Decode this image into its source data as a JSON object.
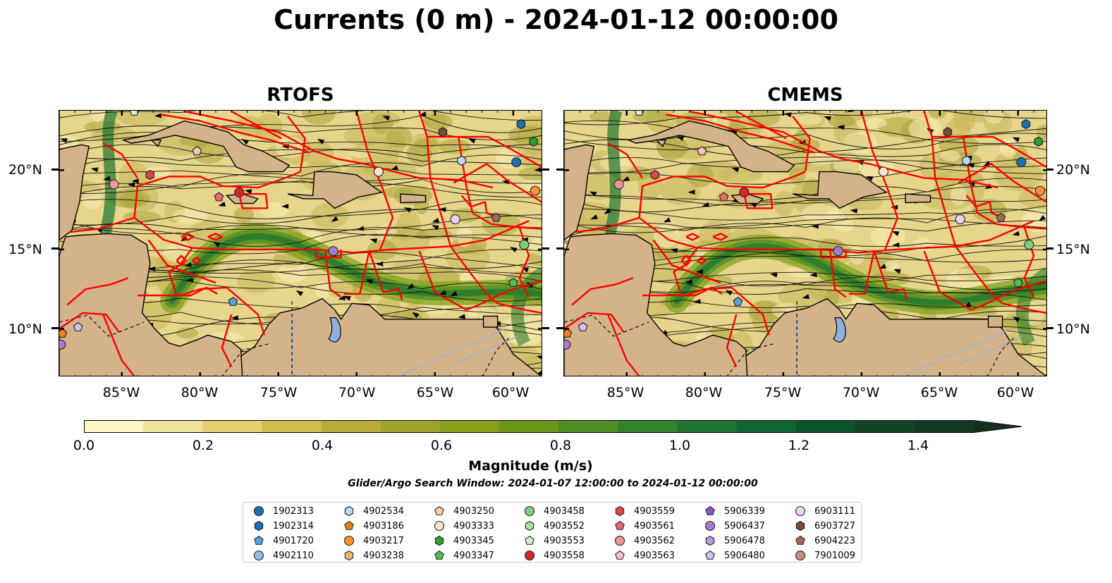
{
  "title": "Currents (0 m) - 2024-01-12 00:00:00",
  "panels": [
    {
      "name": "RTOFS"
    },
    {
      "name": "CMEMS"
    }
  ],
  "lat_labels": [
    "20°N",
    "15°N",
    "10°N"
  ],
  "lon_labels": [
    "85°W",
    "80°W",
    "75°W",
    "70°W",
    "65°W",
    "60°W"
  ],
  "colorbar": {
    "label": "Magnitude (m/s)",
    "ticks": [
      "0.0",
      "0.2",
      "0.4",
      "0.6",
      "0.8",
      "1.0",
      "1.2",
      "1.4"
    ],
    "colors": [
      "#fdf6c3",
      "#f0e39a",
      "#e2cf74",
      "#d2bd52",
      "#b9ac3c",
      "#9ea52a",
      "#84a01d",
      "#6a961a",
      "#4f8c22",
      "#34822a",
      "#1d7530",
      "#0f6630",
      "#0c552a",
      "#0f4526",
      "#123822",
      "#13301c"
    ]
  },
  "search_window_text": "Glider/Argo Search Window: 2024-01-07 12:00:00 to 2024-01-12 00:00:00",
  "legend": [
    {
      "id": "1902313",
      "marker": "circle",
      "color": "#1f6fb4"
    },
    {
      "id": "1902314",
      "marker": "hexagon",
      "color": "#1f6fb4"
    },
    {
      "id": "4901720",
      "marker": "pentagon",
      "color": "#5aa0dc"
    },
    {
      "id": "4902110",
      "marker": "circle",
      "color": "#8fbce8"
    },
    {
      "id": "4902534",
      "marker": "hexagon",
      "color": "#b8dcf6"
    },
    {
      "id": "4903186",
      "marker": "pentagon",
      "color": "#f07e1a"
    },
    {
      "id": "4903217",
      "marker": "circle",
      "color": "#f7923a"
    },
    {
      "id": "4903238",
      "marker": "hexagon",
      "color": "#fbb46e"
    },
    {
      "id": "4903250",
      "marker": "pentagon",
      "color": "#fccf9c"
    },
    {
      "id": "4903333",
      "marker": "circle",
      "color": "#fde3c8"
    },
    {
      "id": "4903345",
      "marker": "hexagon",
      "color": "#2ca02c"
    },
    {
      "id": "4903347",
      "marker": "pentagon",
      "color": "#4fbf4f"
    },
    {
      "id": "4903458",
      "marker": "circle",
      "color": "#7cd07c"
    },
    {
      "id": "4903552",
      "marker": "hexagon",
      "color": "#a6e3a6"
    },
    {
      "id": "4903553",
      "marker": "pentagon",
      "color": "#cdf3cd"
    },
    {
      "id": "4903558",
      "marker": "circle",
      "color": "#d62728"
    },
    {
      "id": "4903559",
      "marker": "hexagon",
      "color": "#e0474a"
    },
    {
      "id": "4903561",
      "marker": "pentagon",
      "color": "#ea6a6c"
    },
    {
      "id": "4903562",
      "marker": "circle",
      "color": "#f29596"
    },
    {
      "id": "4903563",
      "marker": "pentagon",
      "color": "#f9c3c3"
    },
    {
      "id": "5906339",
      "marker": "pentagon",
      "color": "#8a5bc6"
    },
    {
      "id": "5906437",
      "marker": "circle",
      "color": "#a57bd4"
    },
    {
      "id": "5906478",
      "marker": "hexagon",
      "color": "#bd9de0"
    },
    {
      "id": "5906480",
      "marker": "pentagon",
      "color": "#d3bff0"
    },
    {
      "id": "6903111",
      "marker": "circle",
      "color": "#ecd2f6"
    },
    {
      "id": "6903727",
      "marker": "hexagon",
      "color": "#7a4a3a"
    },
    {
      "id": "6904223",
      "marker": "pentagon",
      "color": "#a0685a"
    },
    {
      "id": "7901009",
      "marker": "circle",
      "color": "#c98e82"
    }
  ],
  "colors": {
    "land": "#d4b38a",
    "boundary": "#ff0000",
    "lake": "#8fb0dc"
  }
}
